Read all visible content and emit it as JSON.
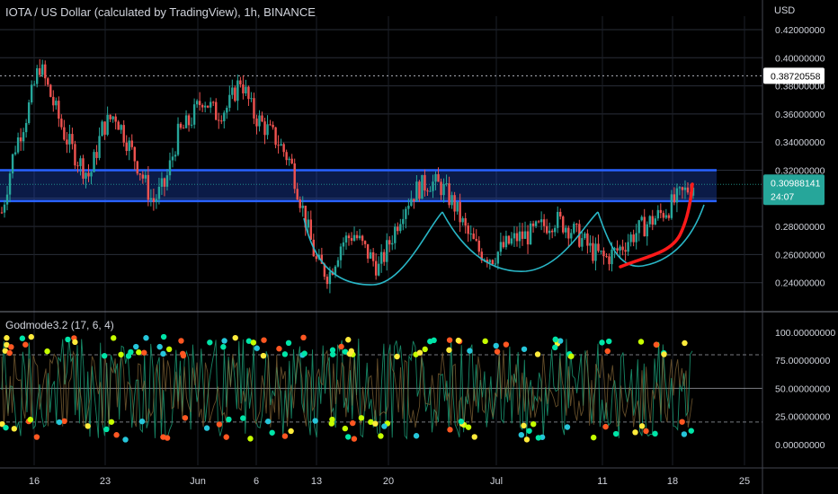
{
  "header": {
    "title": "IOTA / US Dollar (calculated by TradingView), 1h, BINANCE",
    "currency": "USD"
  },
  "indicator": {
    "title": "Godmode3.2 (17, 6, 4)"
  },
  "price_tags": {
    "horizontal_line": "0.38720558",
    "last_price": "0.30988141",
    "countdown": "24:07"
  },
  "colors": {
    "up": "#26a69a",
    "down": "#ef5350",
    "zone": "#2962ff",
    "arc": "#29b6c6",
    "curve": "#ff1a1a",
    "last_price_tag": "#26a69a"
  },
  "chart_data": [
    {
      "type": "candlestick",
      "title": "IOTA / US Dollar (calculated by TradingView), 1h, BINANCE",
      "ylabel": "USD",
      "ylim": [
        0.225,
        0.43
      ],
      "y_ticks": [
        "0.42000000",
        "0.40000000",
        "0.38000000",
        "0.36000000",
        "0.34000000",
        "0.32000000",
        "0.30000000",
        "0.28000000",
        "0.26000000",
        "0.24000000"
      ],
      "x_ticks": [
        "16",
        "23",
        "Jun",
        "6",
        "13",
        "20",
        "Jul",
        "11",
        "18",
        "25"
      ],
      "trend": [
        0.29,
        0.335,
        0.36,
        0.395,
        0.37,
        0.345,
        0.328,
        0.315,
        0.35,
        0.36,
        0.34,
        0.32,
        0.297,
        0.31,
        0.345,
        0.355,
        0.372,
        0.36,
        0.365,
        0.385,
        0.36,
        0.35,
        0.34,
        0.325,
        0.29,
        0.255,
        0.245,
        0.268,
        0.275,
        0.262,
        0.25,
        0.272,
        0.295,
        0.306,
        0.312,
        0.308,
        0.295,
        0.275,
        0.262,
        0.258,
        0.266,
        0.272,
        0.274,
        0.28,
        0.285,
        0.28,
        0.272,
        0.262,
        0.257,
        0.263,
        0.272,
        0.28,
        0.286,
        0.293,
        0.302,
        0.31
      ],
      "resistance_zone": [
        0.298,
        0.32
      ],
      "horizontal_line": 0.3872,
      "last_price": 0.3099
    },
    {
      "type": "line",
      "title": "Godmode3.2 (17, 6, 4)",
      "ylim": [
        -10,
        108
      ],
      "y_ticks": [
        "100.00000000",
        "75.00000000",
        "50.00000000",
        "25.00000000",
        "0.00000000"
      ],
      "levels": [
        80,
        50,
        20
      ]
    }
  ]
}
